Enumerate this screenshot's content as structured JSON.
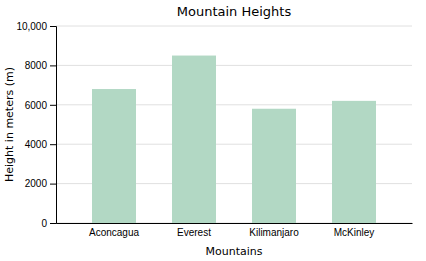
{
  "chart_data": {
    "type": "bar",
    "title": "Mountain Heights",
    "categories": [
      "Aconcagua",
      "Everest",
      "Kilimanjaro",
      "McKinley"
    ],
    "values": [
      6800,
      8500,
      5800,
      6200
    ],
    "color": "#b2d8c4",
    "xlabel": "Mountains",
    "ylabel": "Height in meters (m)",
    "ylim": [
      0,
      10000
    ],
    "yticks": [
      0,
      2000,
      4000,
      6000,
      8000,
      {
        "value": 10000,
        "label": "10,000"
      }
    ],
    "grid": true
  }
}
